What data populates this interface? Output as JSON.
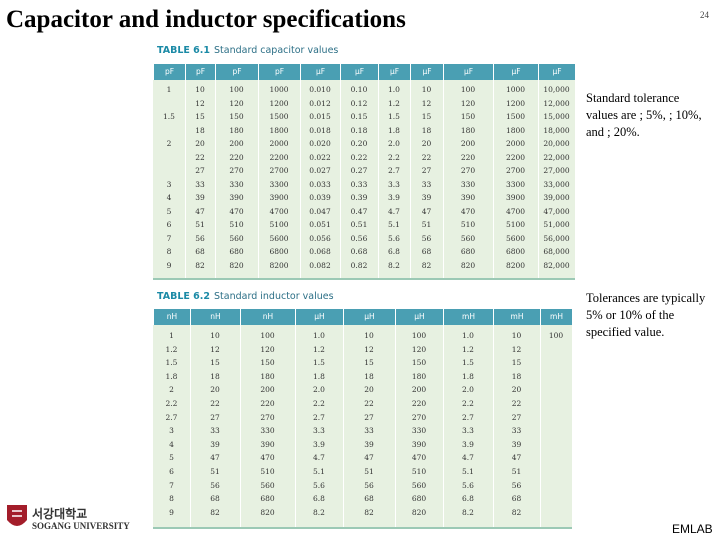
{
  "header": {
    "title": "Capacitor and inductor specifications",
    "page_number": "24"
  },
  "capacitor_table": {
    "caption_label": "TABLE 6.1",
    "caption": "Standard capacitor values",
    "columns": [
      "pF",
      "pF",
      "pF",
      "pF",
      "µF",
      "µF",
      "µF",
      "µF",
      "µF",
      "µF",
      "µF"
    ],
    "rows": [
      [
        "1",
        "10",
        "100",
        "1000",
        "0.010",
        "0.10",
        "1.0",
        "10",
        "100",
        "1000",
        "10,000"
      ],
      [
        null,
        "12",
        "120",
        "1200",
        "0.012",
        "0.12",
        "1.2",
        "12",
        "120",
        "1200",
        "12,000"
      ],
      [
        "1.5",
        "15",
        "150",
        "1500",
        "0.015",
        "0.15",
        "1.5",
        "15",
        "150",
        "1500",
        "15,000"
      ],
      [
        null,
        "18",
        "180",
        "1800",
        "0.018",
        "0.18",
        "1.8",
        "18",
        "180",
        "1800",
        "18,000"
      ],
      [
        "2",
        "20",
        "200",
        "2000",
        "0.020",
        "0.20",
        "2.0",
        "20",
        "200",
        "2000",
        "20,000"
      ],
      [
        null,
        "22",
        "220",
        "2200",
        "0.022",
        "0.22",
        "2.2",
        "22",
        "220",
        "2200",
        "22,000"
      ],
      [
        null,
        "27",
        "270",
        "2700",
        "0.027",
        "0.27",
        "2.7",
        "27",
        "270",
        "2700",
        "27,000"
      ],
      [
        "3",
        "33",
        "330",
        "3300",
        "0.033",
        "0.33",
        "3.3",
        "33",
        "330",
        "3300",
        "33,000"
      ],
      [
        "4",
        "39",
        "390",
        "3900",
        "0.039",
        "0.39",
        "3.9",
        "39",
        "390",
        "3900",
        "39,000"
      ],
      [
        "5",
        "47",
        "470",
        "4700",
        "0.047",
        "0.47",
        "4.7",
        "47",
        "470",
        "4700",
        "47,000"
      ],
      [
        "6",
        "51",
        "510",
        "5100",
        "0.051",
        "0.51",
        "5.1",
        "51",
        "510",
        "5100",
        "51,000"
      ],
      [
        "7",
        "56",
        "560",
        "5600",
        "0.056",
        "0.56",
        "5.6",
        "56",
        "560",
        "5600",
        "56,000"
      ],
      [
        "8",
        "68",
        "680",
        "6800",
        "0.068",
        "0.68",
        "6.8",
        "68",
        "680",
        "6800",
        "68,000"
      ],
      [
        "9",
        "82",
        "820",
        "8200",
        "0.082",
        "0.82",
        "8.2",
        "82",
        "820",
        "8200",
        "82,000"
      ]
    ]
  },
  "inductor_table": {
    "caption_label": "TABLE 6.2",
    "caption": "Standard inductor values",
    "columns": [
      "nH",
      "nH",
      "nH",
      "µH",
      "µH",
      "µH",
      "mH",
      "mH",
      "mH"
    ],
    "rows": [
      [
        "1",
        "10",
        "100",
        "1.0",
        "10",
        "100",
        "1.0",
        "10",
        "100"
      ],
      [
        "1.2",
        "12",
        "120",
        "1.2",
        "12",
        "120",
        "1.2",
        "12",
        null
      ],
      [
        "1.5",
        "15",
        "150",
        "1.5",
        "15",
        "150",
        "1.5",
        "15",
        null
      ],
      [
        "1.8",
        "18",
        "180",
        "1.8",
        "18",
        "180",
        "1.8",
        "18",
        null
      ],
      [
        "2",
        "20",
        "200",
        "2.0",
        "20",
        "200",
        "2.0",
        "20",
        null
      ],
      [
        "2.2",
        "22",
        "220",
        "2.2",
        "22",
        "220",
        "2.2",
        "22",
        null
      ],
      [
        "2.7",
        "27",
        "270",
        "2.7",
        "27",
        "270",
        "2.7",
        "27",
        null
      ],
      [
        "3",
        "33",
        "330",
        "3.3",
        "33",
        "330",
        "3.3",
        "33",
        null
      ],
      [
        "4",
        "39",
        "390",
        "3.9",
        "39",
        "390",
        "3.9",
        "39",
        null
      ],
      [
        "5",
        "47",
        "470",
        "4.7",
        "47",
        "470",
        "4.7",
        "47",
        null
      ],
      [
        "6",
        "51",
        "510",
        "5.1",
        "51",
        "510",
        "5.1",
        "51",
        null
      ],
      [
        "7",
        "56",
        "560",
        "5.6",
        "56",
        "560",
        "5.6",
        "56",
        null
      ],
      [
        "8",
        "68",
        "680",
        "6.8",
        "68",
        "680",
        "6.8",
        "68",
        null
      ],
      [
        "9",
        "82",
        "820",
        "8.2",
        "82",
        "820",
        "8.2",
        "82",
        null
      ]
    ]
  },
  "notes": [
    "Standard tolerance values are ; 5%, ; 10%, and ; 20%.",
    "Tolerances are typically 5% or 10% of the specified value."
  ],
  "footer": {
    "logo_korean": "서강대학교",
    "logo_english": "SOGANG UNIVERSITY",
    "lab": "EMLAB"
  }
}
